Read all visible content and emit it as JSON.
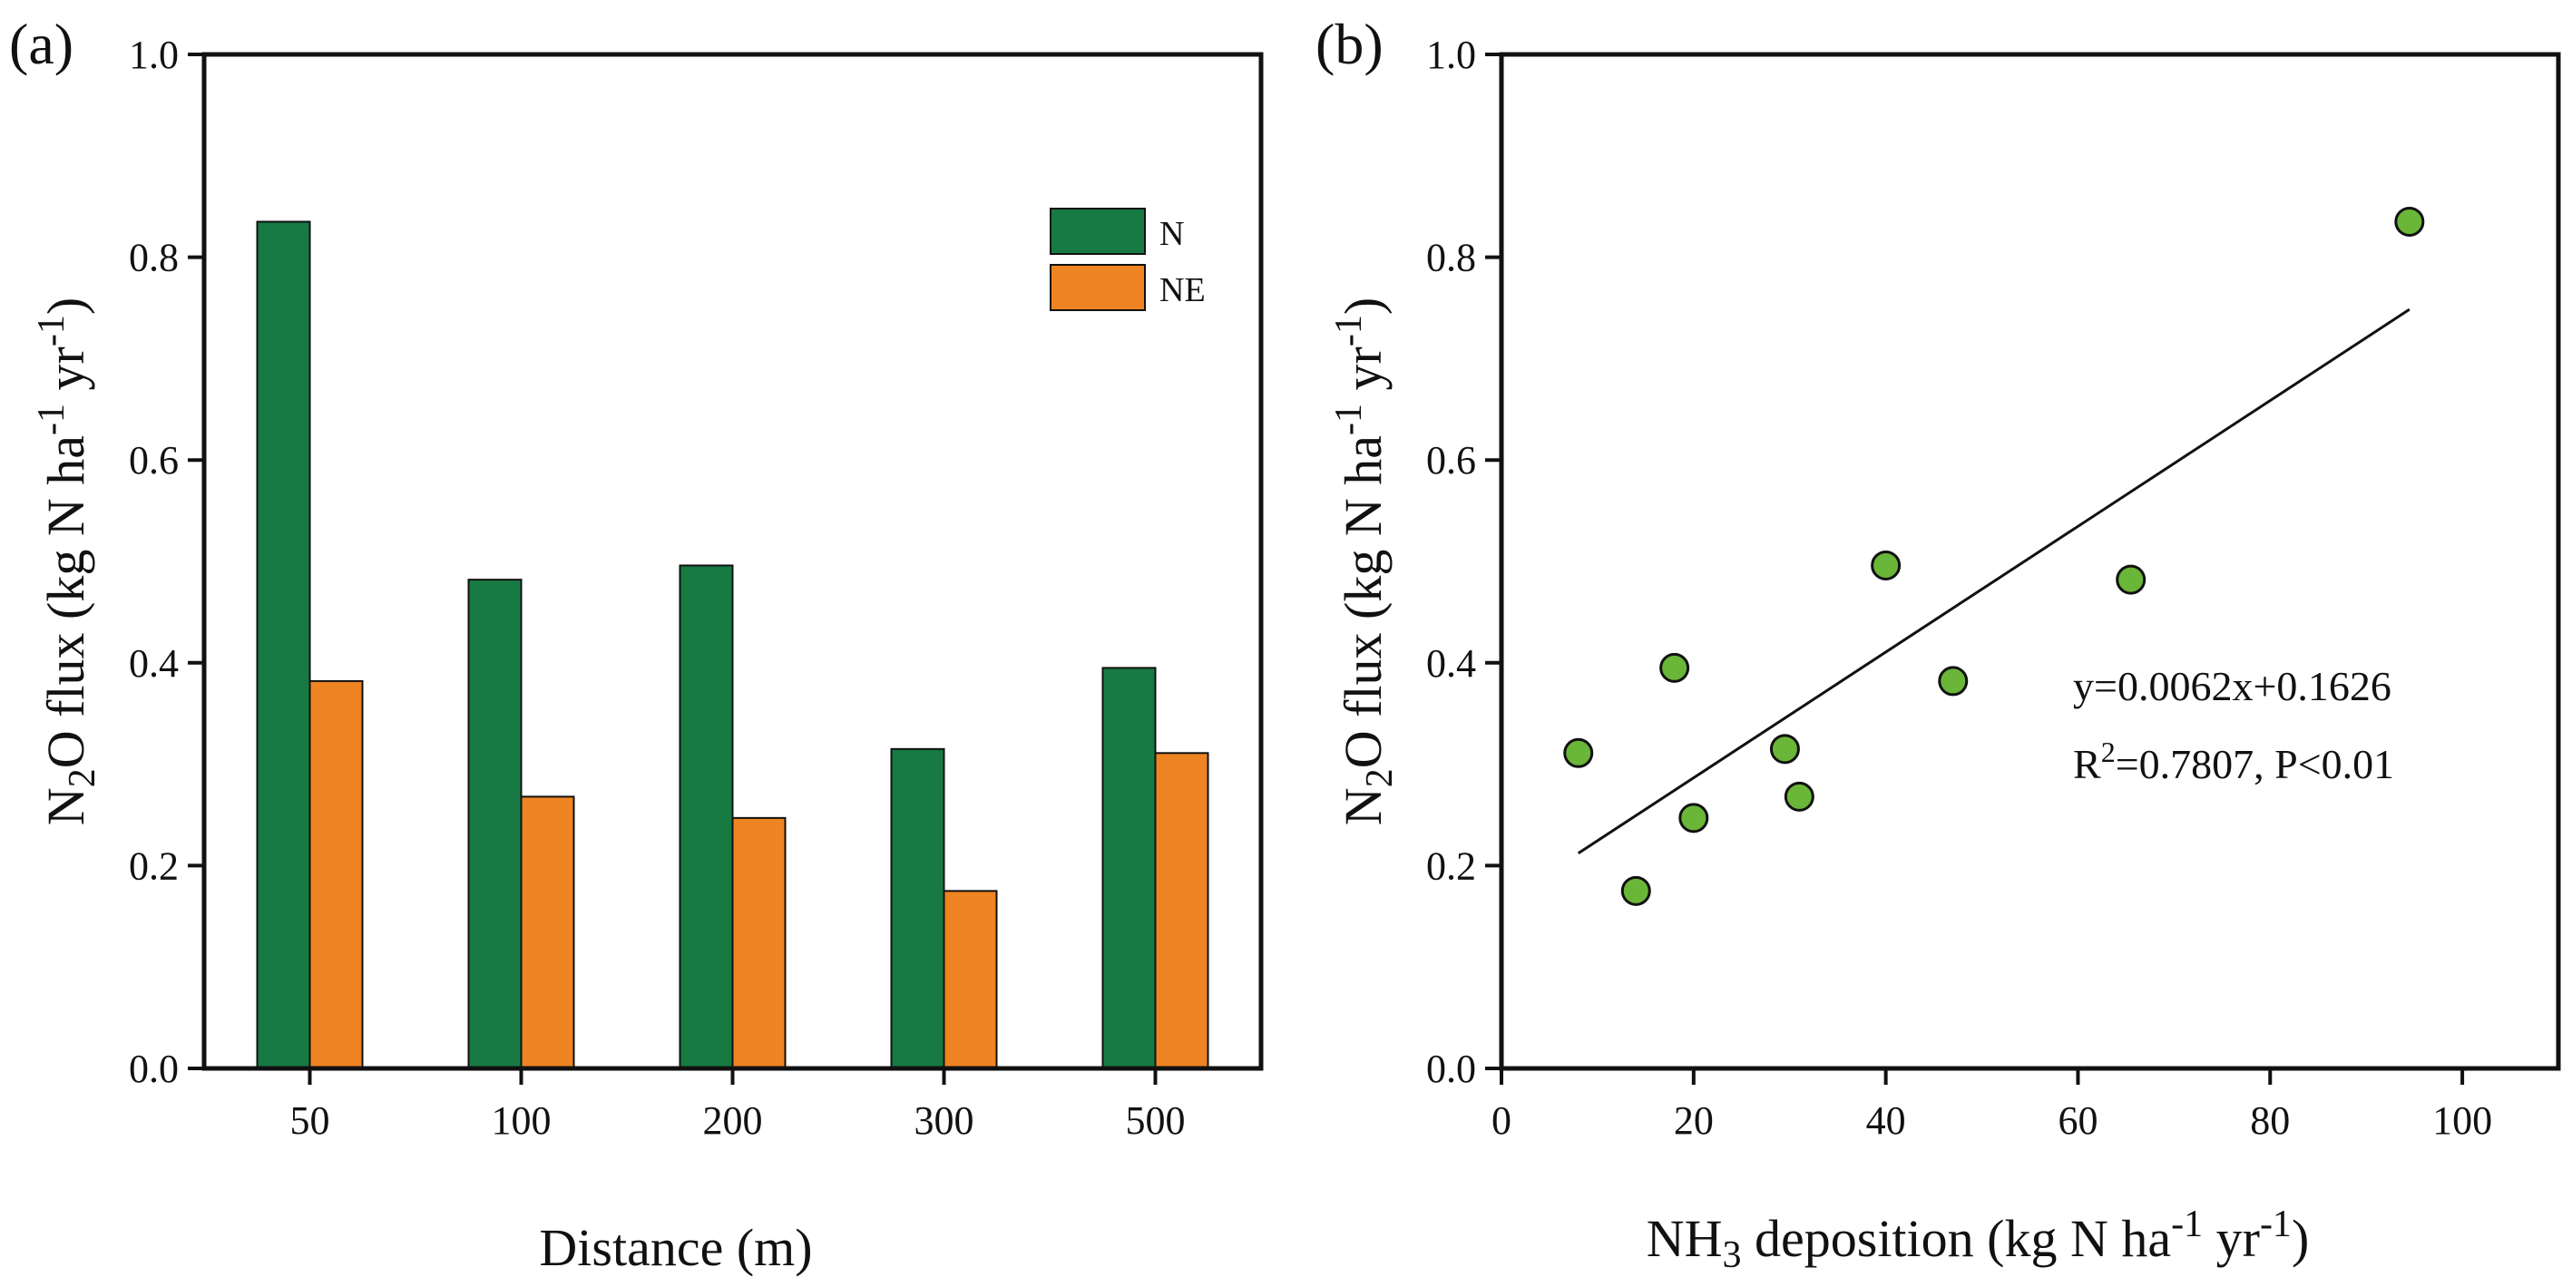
{
  "chart_data": [
    {
      "type": "bar",
      "panel_label": "(a)",
      "categories": [
        "50",
        "100",
        "200",
        "300",
        "500"
      ],
      "series": [
        {
          "name": "N",
          "color": "#177a43",
          "values": [
            0.835,
            0.482,
            0.496,
            0.315,
            0.395
          ]
        },
        {
          "name": "NE",
          "color": "#ef8422",
          "values": [
            0.382,
            0.268,
            0.247,
            0.175,
            0.311
          ]
        }
      ],
      "xlabel": "Distance (m)",
      "ylabel": {
        "pre": "N",
        "sub": "2",
        "post": "O flux (kg N ha",
        "sup1": "-1",
        "mid": " yr",
        "sup2": "-1",
        "end": ")"
      },
      "ylim": [
        0.0,
        1.0
      ],
      "yticks": [
        "0.0",
        "0.2",
        "0.4",
        "0.6",
        "0.8",
        "1.0"
      ],
      "legend_position": "top-right"
    },
    {
      "type": "scatter",
      "panel_label": "(b)",
      "points": [
        {
          "x": 8,
          "y": 0.311
        },
        {
          "x": 14,
          "y": 0.175
        },
        {
          "x": 18,
          "y": 0.395
        },
        {
          "x": 20,
          "y": 0.247
        },
        {
          "x": 29.5,
          "y": 0.315
        },
        {
          "x": 31,
          "y": 0.268
        },
        {
          "x": 40,
          "y": 0.496
        },
        {
          "x": 47,
          "y": 0.382
        },
        {
          "x": 65.5,
          "y": 0.482
        },
        {
          "x": 94.5,
          "y": 0.835
        }
      ],
      "point_color": "#6ab638",
      "fit_line": {
        "slope": 0.0062,
        "intercept": 0.1626,
        "x_range": [
          8,
          94.5
        ]
      },
      "equation": "y=0.0062x+0.1626",
      "r2_label": {
        "pre": "R",
        "sup": "2",
        "post": "=0.7807, P<0.01"
      },
      "xlabel": {
        "pre": "NH",
        "sub": "3",
        "mid": " deposition  (kg N ha",
        "sup1": "-1",
        "mid2": " yr",
        "sup2": "-1",
        "end": ")"
      },
      "ylabel": {
        "pre": "N",
        "sub": "2",
        "post": "O flux (kg N ha",
        "sup1": "-1",
        "mid": " yr",
        "sup2": "-1",
        "end": ")"
      },
      "xlim": [
        0,
        110
      ],
      "ylim": [
        0.0,
        1.0
      ],
      "xticks": [
        "0",
        "20",
        "40",
        "60",
        "80",
        "100"
      ],
      "yticks": [
        "0.0",
        "0.2",
        "0.4",
        "0.6",
        "0.8",
        "1.0"
      ]
    }
  ]
}
